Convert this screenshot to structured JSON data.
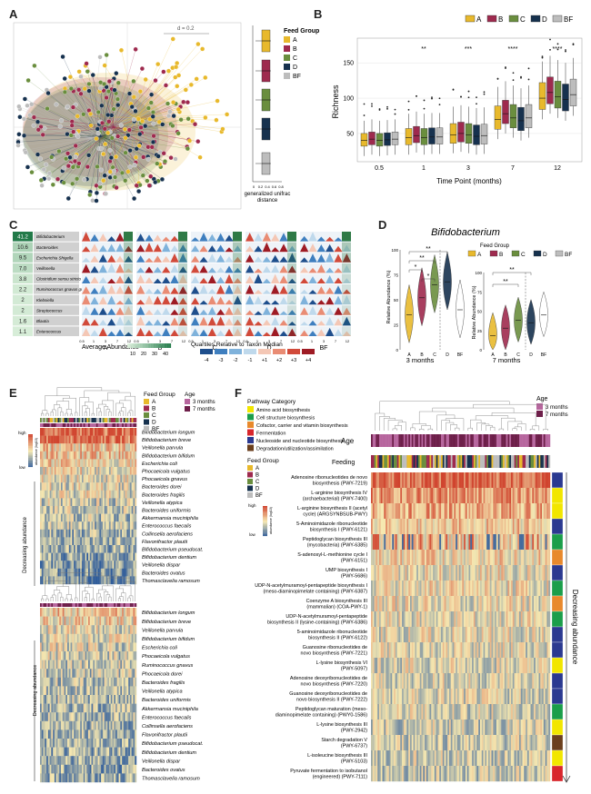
{
  "panel_labels": [
    "A",
    "B",
    "C",
    "D",
    "E",
    "F"
  ],
  "colors": {
    "A": "#E8B92C",
    "B": "#9E2A4E",
    "C": "#6A8E3E",
    "D": "#16314E",
    "BF": "#BDBDBD",
    "heat_high": "#D0442E",
    "heat_mid": "#F6E8B0",
    "heat_low": "#2F5C9A",
    "age3": "#B7669E",
    "age7": "#6E1F4A"
  },
  "panel_a": {
    "scale_label": "d = 0.2",
    "legend_title": "Feed Group",
    "legend_items": [
      "A",
      "B",
      "C",
      "D",
      "BF"
    ],
    "xaxis_label_line1": "generalized unifrac",
    "xaxis_label_line2": "distance",
    "xticks": [
      "0",
      "0.2",
      "0.4",
      "0.6",
      "0.8"
    ]
  },
  "panel_b": {
    "legend_items": [
      "A",
      "B",
      "C",
      "D",
      "BF"
    ],
    "ylabel": "Richness",
    "xlabel": "Time Point (months)",
    "yticks": [
      "50",
      "100",
      "150"
    ],
    "timepoints": [
      "0.5",
      "1",
      "3",
      "7",
      "12"
    ],
    "significance": [
      "",
      "**",
      "***",
      "****",
      "****"
    ]
  },
  "panel_c": {
    "taxa": [
      "Bifidobacterium",
      "Bacteroides",
      "Escherichia Shigella",
      "Veillonella",
      "Clostridium sensu stricto 1",
      "Ruminococcus gnavus group",
      "Klebsiella",
      "Streptococcus",
      "Blautia",
      "Enterococcus"
    ],
    "abundance": [
      "41.2",
      "10.6",
      "9.5",
      "7.0",
      "3.8",
      "2.2",
      "2",
      "2",
      "1.6",
      "1.1"
    ],
    "groups": [
      "A",
      "B",
      "C",
      "D",
      "BF"
    ],
    "xticks": [
      "0.5",
      "1",
      "3",
      "7",
      "12"
    ],
    "abundance_legend_title": "Average Abundance",
    "abundance_ticks": [
      "10",
      "20",
      "30",
      "40"
    ],
    "quartile_legend_title": "Quartiles Relative to Taxon Median",
    "quartile_ticks": [
      "-4",
      "-3",
      "-2",
      "-1",
      "+1",
      "+2",
      "+3",
      "+4"
    ],
    "quartile_colors": [
      "#1E4E8C",
      "#3F7FBF",
      "#7FB2DB",
      "#BFD9EC",
      "#F4C7B5",
      "#E98C74",
      "#D14A3A",
      "#9E1B24"
    ]
  },
  "panel_d": {
    "title": "Bifidobacterium",
    "ylabel": "Relative Abundance (%)",
    "legend_title": "Feed Group",
    "legend_items": [
      "A",
      "B",
      "C",
      "D",
      "BF"
    ],
    "yticks": [
      "0",
      "25",
      "50",
      "75",
      "100"
    ],
    "groups": [
      "A",
      "B",
      "C",
      "D",
      "BF"
    ],
    "sub_3": "3 months",
    "sub_7": "7 months",
    "sig_3": [
      "**",
      "**",
      "*",
      "*"
    ],
    "sig_7": [
      "**",
      "**"
    ],
    "chart_data": [
      {
        "type": "violin",
        "title": "3 months",
        "categories": [
          "A",
          "B",
          "C",
          "D",
          "BF"
        ],
        "median": [
          35,
          52,
          65,
          68,
          40
        ]
      },
      {
        "type": "violin",
        "title": "7 months",
        "categories": [
          "A",
          "B",
          "C",
          "D",
          "BF"
        ],
        "median": [
          18,
          28,
          38,
          35,
          45
        ]
      }
    ]
  },
  "panel_e": {
    "legend_feed_title": "Feed Group",
    "legend_feed": [
      "A",
      "B",
      "C",
      "D",
      "BF"
    ],
    "legend_age_title": "Age",
    "legend_age": [
      "3 months",
      "7 months"
    ],
    "scale_high": "high",
    "scale_low": "low",
    "scale_label": "abundance (log10)",
    "side_label": "Decreasing abundance",
    "taxa_top": [
      "Bifidobacterium longum",
      "Bifidobacterium breve",
      "Veillonella parvula",
      "Bifidobacterium bifidum",
      "Escherichia coli",
      "Phocaeicola vulgatus",
      "Phocaeicola gnavus",
      "Bacteroides dorei",
      "Bacteroides fragilis",
      "Veillonella atypica",
      "Bacteroides uniformis",
      "Akkermansia muciniphila",
      "Enterococcus faecalis",
      "Collinsella aerofaciens",
      "Flavonifractor plautii",
      "Bifidobacterium pseudocat.",
      "Bifidobacterium dentium",
      "Veillonella dispar",
      "Bacteroides ovatus",
      "Thomasclavelia ramosum"
    ],
    "taxa_bottom": [
      "Bifidobacterium longum",
      "Bifidobacterium breve",
      "Veillonella parvula",
      "Bifidobacterium bifidum",
      "Escherichia coli",
      "Phocaeicola vulgatus",
      "Ruminococcus gnavus",
      "Phocaeicola dorei",
      "Bacteroides fragilis",
      "Veillonella atypica",
      "Bacteroides uniformis",
      "Akkermansia muciniphila",
      "Enterococcus faecalis",
      "Collinsella aerofaciens",
      "Flavonifractor plautii",
      "Bifidobacterium pseudocat.",
      "Bifidobacterium dentium",
      "Veillonella dispar",
      "Bacteroides ovatus",
      "Thomasclavelia ramosum"
    ]
  },
  "panel_f": {
    "pathway_title": "Pathway Category",
    "pathway_items": [
      {
        "label": "Amino acid biosynthesis",
        "color": "#F2E600"
      },
      {
        "label": "Cell structure biosynthesis",
        "color": "#1B9E4A"
      },
      {
        "label": "Cofactor, carrier and vitamin biosynthesis",
        "color": "#E8892C"
      },
      {
        "label": "Fermentation",
        "color": "#D8262C"
      },
      {
        "label": "Nucleoside and nucleotide biosynthesis",
        "color": "#2B3990"
      },
      {
        "label": "Degradation/utilization/assimilation",
        "color": "#6B3F1D"
      }
    ],
    "feed_title": "Feed Group",
    "feed_items": [
      "A",
      "B",
      "C",
      "D",
      "BF"
    ],
    "age_title": "Age",
    "age_items": [
      "3 months",
      "7 months"
    ],
    "age_bar_label": "Age",
    "feeding_bar_label": "Feeding",
    "scale_high": "high",
    "scale_low": "low",
    "scale_label": "abundance (log10)",
    "side_label": "Decreasing abundance",
    "pathways": [
      {
        "l1": "Adenosine ribonucleotides de novo",
        "l2": "biosynthesis (PWY-7219)",
        "cat": 4
      },
      {
        "l1": "L-arginine biosynthesis IV",
        "l2": "(archaebacterial) (PWY-7400)",
        "cat": 0
      },
      {
        "l1": "L-arginine biosynthesis II (acetyl",
        "l2": "cycle) (ARGSYNBSUB-PWY)",
        "cat": 0
      },
      {
        "l1": "5-Aminoimidazole ribonucleotide",
        "l2": "biosynthesis I (PWY-6121)",
        "cat": 4
      },
      {
        "l1": "Peptidoglycan biosynthesis III",
        "l2": "(mycobacteria) (PWY-6385)",
        "cat": 1
      },
      {
        "l1": "S-adenosyl-L-methionine cycle I",
        "l2": "(PWY-6151)",
        "cat": 2
      },
      {
        "l1": "UMP biosynthesis I",
        "l2": "(PWY-5686)",
        "cat": 4
      },
      {
        "l1": "UDP-N-acetylmuramoyl-pentapeptide biosynthesis I",
        "l2": "(meso-diaminopimelate containing) (PWY-6387)",
        "cat": 1
      },
      {
        "l1": "Coenzyme A biosynthesis III",
        "l2": "(mammalian) (COA-PWY-1)",
        "cat": 2
      },
      {
        "l1": "UDP-N-acetylmuramoyl-pentapeptide",
        "l2": "biosynthesis II (lysine-containing) (PWY-6386)",
        "cat": 1
      },
      {
        "l1": "5-aminoimidazole ribonucleotide",
        "l2": "biosynthesis II (PWY-6122)",
        "cat": 4
      },
      {
        "l1": "Guanosine ribonucleotides de",
        "l2": "novo biosynthesis (PWY-7221)",
        "cat": 4
      },
      {
        "l1": "L-lysine biosynthesis VI",
        "l2": "(PWY-5097)",
        "cat": 0
      },
      {
        "l1": "Adenosine deoxyribonucleotides de",
        "l2": "novo biosynthesis (PWY-7220)",
        "cat": 4
      },
      {
        "l1": "Guanosine deoxyribonucleotides de",
        "l2": "novo biosynthesis II (PWY-7222)",
        "cat": 4
      },
      {
        "l1": "Peptidoglycan maturation (meso-",
        "l2": "diaminopimelate containing) (PWY0-1586)",
        "cat": 1
      },
      {
        "l1": "L-lysine biosynthesis III",
        "l2": "(PWY-2942)",
        "cat": 0
      },
      {
        "l1": "Starch degradation V",
        "l2": "(PWY-6737)",
        "cat": 5
      },
      {
        "l1": "L-isoleucine biosynthesis III",
        "l2": "(PWY-5103)",
        "cat": 0
      },
      {
        "l1": "Pyruvate fermentation to isobutanol",
        "l2": "(engineered) (PWY-7111)",
        "cat": 3
      }
    ]
  }
}
